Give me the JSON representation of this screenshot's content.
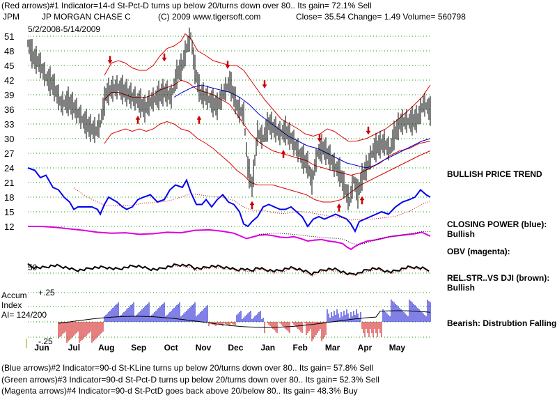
{
  "header": {
    "line1": "(Red arrows)#1 Indicator=14-d St-Pct-D turns up below 20/turns down over 80.. Its gain= 72.1% Sell",
    "symbol": "JPM",
    "company": "JP MORGAN CHASE C",
    "copyright": "(C) 2009 www.tigersoft.com",
    "quote": "Close=  35.54  Change= 1.49 Volume= 560798",
    "date_range": "5/2/2008-5/14/2009"
  },
  "right_labels": {
    "trend": "BULLISH PRICE TREND",
    "closing_power": "CLOSING POWER (blue):",
    "closing_power_val": "Bullish",
    "obv": "OBV (magenta):",
    "relstr": "REL.STR..VS DJI (brown):",
    "relstr_val": "Bullish",
    "accum_status": "Bearish: Distrubtion Falling."
  },
  "left_labels": {
    "accum": "Accum",
    "index": "Index",
    "ai": "AI= 124/200",
    "rel_tick": "50",
    "acc_hi": "+.25",
    "acc_lo": "-.25"
  },
  "footer": {
    "line1": "(Blue arrows)#2 Indicator=90-d St-KLine turns up below 20/turns down over 80.. Its gain= 57.8% Sell",
    "line2": "(Green arrows)#3 Indicator=90-d St-Pct-D turns up below 20/turns down over 80.. Its gain= 52.3% Sell",
    "line3": "(Magenta arrows)#4 Indicator=90-d St-PctD goes back above 20/below 80.. Its gain= 48.3% Buy"
  },
  "colors": {
    "price": "#000000",
    "band": "#dd0000",
    "ma": "#0000cc",
    "closing_power": "#0000ee",
    "obv": "#dd00dd",
    "accum_pos": "#0000cc",
    "accum_neg": "#cc0000",
    "grid": "#009900"
  },
  "chart_data": {
    "type": "line",
    "y_ticks": [
      51,
      48,
      45,
      42,
      39,
      36,
      33,
      30,
      27,
      24,
      21,
      18,
      15,
      12
    ],
    "ylim": [
      12,
      51
    ],
    "months": [
      "Jun",
      "Jul",
      "Aug",
      "Sep",
      "Oct",
      "Nov",
      "Dec",
      "Jan",
      "Feb",
      "Mar",
      "Apr",
      "May"
    ],
    "price_close": [
      [
        0,
        49.5
      ],
      [
        8,
        46.5
      ],
      [
        16,
        45.5
      ],
      [
        26,
        42.5
      ],
      [
        36,
        41
      ],
      [
        48,
        37
      ],
      [
        58,
        37.5
      ],
      [
        68,
        36
      ],
      [
        80,
        33.5
      ],
      [
        90,
        32
      ],
      [
        98,
        31.5
      ],
      [
        104,
        33
      ],
      [
        112,
        39
      ],
      [
        120,
        40
      ],
      [
        130,
        40.5
      ],
      [
        140,
        39.5
      ],
      [
        150,
        38.5
      ],
      [
        160,
        37.5
      ],
      [
        168,
        36
      ],
      [
        176,
        37.5
      ],
      [
        186,
        38.5
      ],
      [
        196,
        39.5
      ],
      [
        206,
        38.5
      ],
      [
        214,
        43
      ],
      [
        222,
        45
      ],
      [
        228,
        48.5
      ],
      [
        234,
        51
      ],
      [
        240,
        44
      ],
      [
        248,
        39
      ],
      [
        256,
        38.5
      ],
      [
        264,
        37.5
      ],
      [
        272,
        36.5
      ],
      [
        280,
        39
      ],
      [
        290,
        41.5
      ],
      [
        296,
        38.5
      ],
      [
        302,
        36
      ],
      [
        310,
        35
      ],
      [
        316,
        24
      ],
      [
        322,
        20
      ],
      [
        330,
        31
      ],
      [
        338,
        30
      ],
      [
        346,
        33
      ],
      [
        354,
        32
      ],
      [
        362,
        31
      ],
      [
        370,
        31.5
      ],
      [
        378,
        30
      ],
      [
        386,
        28
      ],
      [
        394,
        26
      ],
      [
        402,
        24.5
      ],
      [
        408,
        21
      ],
      [
        416,
        27
      ],
      [
        424,
        28
      ],
      [
        432,
        26.5
      ],
      [
        440,
        24.5
      ],
      [
        448,
        23
      ],
      [
        456,
        19.5
      ],
      [
        462,
        17
      ],
      [
        468,
        21.5
      ],
      [
        474,
        18.5
      ],
      [
        480,
        22
      ],
      [
        488,
        24.5
      ],
      [
        496,
        27.5
      ],
      [
        504,
        28.5
      ],
      [
        512,
        29
      ],
      [
        520,
        27.5
      ],
      [
        526,
        30.5
      ],
      [
        534,
        33
      ],
      [
        542,
        33.5
      ],
      [
        552,
        33.5
      ],
      [
        560,
        34
      ],
      [
        568,
        37
      ],
      [
        574,
        36.5
      ],
      [
        578,
        35.5
      ]
    ],
    "band_upper": [
      [
        110,
        43
      ],
      [
        120,
        45.5
      ],
      [
        130,
        46
      ],
      [
        140,
        45.5
      ],
      [
        150,
        44.5
      ],
      [
        160,
        44
      ],
      [
        170,
        44
      ],
      [
        180,
        45
      ],
      [
        190,
        47
      ],
      [
        200,
        48.5
      ],
      [
        210,
        49
      ],
      [
        220,
        50
      ],
      [
        226,
        51.5
      ],
      [
        234,
        50.5
      ],
      [
        244,
        48
      ],
      [
        256,
        47
      ],
      [
        266,
        46
      ],
      [
        278,
        45.5
      ],
      [
        290,
        45
      ],
      [
        300,
        45
      ],
      [
        310,
        44
      ],
      [
        320,
        42
      ],
      [
        330,
        40
      ],
      [
        340,
        38
      ],
      [
        352,
        36
      ],
      [
        364,
        34
      ],
      [
        376,
        33
      ],
      [
        388,
        32
      ],
      [
        398,
        31
      ],
      [
        410,
        30.5
      ],
      [
        420,
        31
      ],
      [
        430,
        32
      ],
      [
        440,
        31.5
      ],
      [
        450,
        30.5
      ],
      [
        460,
        29.5
      ],
      [
        472,
        29.5
      ],
      [
        486,
        30
      ],
      [
        500,
        31
      ],
      [
        514,
        32
      ],
      [
        528,
        33.5
      ],
      [
        540,
        35
      ],
      [
        552,
        36.5
      ],
      [
        566,
        38.5
      ],
      [
        578,
        41
      ]
    ],
    "band_mid": [
      [
        110,
        38
      ],
      [
        120,
        39.5
      ],
      [
        130,
        39.5
      ],
      [
        140,
        39
      ],
      [
        150,
        38.5
      ],
      [
        160,
        38.5
      ],
      [
        170,
        38.5
      ],
      [
        180,
        39
      ],
      [
        190,
        40
      ],
      [
        200,
        40.5
      ],
      [
        210,
        41
      ],
      [
        220,
        42
      ],
      [
        230,
        41.5
      ],
      [
        244,
        40
      ],
      [
        256,
        39.5
      ],
      [
        266,
        39
      ],
      [
        278,
        38
      ],
      [
        290,
        37
      ],
      [
        300,
        35
      ],
      [
        310,
        33
      ],
      [
        320,
        31
      ],
      [
        330,
        29.5
      ],
      [
        340,
        28.5
      ],
      [
        352,
        27.5
      ],
      [
        364,
        27
      ],
      [
        376,
        26.5
      ],
      [
        388,
        26
      ],
      [
        400,
        25.5
      ],
      [
        412,
        24.5
      ],
      [
        424,
        24
      ],
      [
        436,
        23.5
      ],
      [
        450,
        23
      ],
      [
        464,
        22.5
      ],
      [
        478,
        23
      ],
      [
        492,
        24
      ],
      [
        506,
        25
      ],
      [
        520,
        26.5
      ],
      [
        534,
        27.5
      ],
      [
        548,
        28
      ],
      [
        562,
        29
      ],
      [
        578,
        29.5
      ]
    ],
    "band_lower": [
      [
        110,
        29
      ],
      [
        120,
        31
      ],
      [
        130,
        31.5
      ],
      [
        140,
        32
      ],
      [
        150,
        31.5
      ],
      [
        160,
        32
      ],
      [
        170,
        31.5
      ],
      [
        180,
        32
      ],
      [
        190,
        33
      ],
      [
        200,
        33.5
      ],
      [
        210,
        33
      ],
      [
        220,
        32
      ],
      [
        232,
        31.5
      ],
      [
        244,
        30
      ],
      [
        256,
        29
      ],
      [
        266,
        28
      ],
      [
        278,
        26.5
      ],
      [
        290,
        25
      ],
      [
        300,
        23.5
      ],
      [
        310,
        22.5
      ],
      [
        320,
        21
      ],
      [
        330,
        20.5
      ],
      [
        340,
        20.5
      ],
      [
        352,
        20.5
      ],
      [
        364,
        20
      ],
      [
        376,
        19.5
      ],
      [
        388,
        19
      ],
      [
        400,
        18.5
      ],
      [
        412,
        17.5
      ],
      [
        424,
        17
      ],
      [
        436,
        17
      ],
      [
        450,
        17.5
      ],
      [
        464,
        19
      ],
      [
        478,
        20.5
      ],
      [
        492,
        21.5
      ],
      [
        506,
        22.5
      ],
      [
        520,
        23.5
      ],
      [
        534,
        24.5
      ],
      [
        548,
        25.5
      ],
      [
        562,
        26.5
      ],
      [
        578,
        27.5
      ]
    ],
    "ma": [
      [
        210,
        38.5
      ],
      [
        222,
        39.5
      ],
      [
        236,
        40.5
      ],
      [
        250,
        41
      ],
      [
        262,
        40.5
      ],
      [
        276,
        40
      ],
      [
        290,
        39.5
      ],
      [
        304,
        38.5
      ],
      [
        318,
        37
      ],
      [
        332,
        35
      ],
      [
        346,
        33.5
      ],
      [
        360,
        32
      ],
      [
        374,
        30.5
      ],
      [
        388,
        29.5
      ],
      [
        402,
        28.5
      ],
      [
        416,
        28
      ],
      [
        430,
        27
      ],
      [
        444,
        26
      ],
      [
        458,
        25
      ],
      [
        472,
        24.5
      ],
      [
        486,
        24
      ],
      [
        498,
        24.5
      ],
      [
        510,
        25.5
      ],
      [
        524,
        26.5
      ],
      [
        538,
        27.5
      ],
      [
        552,
        28.5
      ],
      [
        566,
        29.5
      ],
      [
        578,
        30
      ]
    ],
    "closing_power": [
      [
        0,
        24
      ],
      [
        10,
        23.5
      ],
      [
        18,
        22
      ],
      [
        26,
        22.5
      ],
      [
        36,
        20
      ],
      [
        44,
        19.5
      ],
      [
        52,
        18
      ],
      [
        60,
        17
      ],
      [
        66,
        15.5
      ],
      [
        72,
        16
      ],
      [
        82,
        16
      ],
      [
        92,
        16
      ],
      [
        100,
        15.5
      ],
      [
        104,
        14.5
      ],
      [
        110,
        16.5
      ],
      [
        116,
        18
      ],
      [
        122,
        17.5
      ],
      [
        128,
        17
      ],
      [
        136,
        16
      ],
      [
        142,
        15.5
      ],
      [
        150,
        16
      ],
      [
        158,
        17.5
      ],
      [
        166,
        18
      ],
      [
        176,
        18.5
      ],
      [
        186,
        17
      ],
      [
        196,
        17.5
      ],
      [
        204,
        19.5
      ],
      [
        212,
        20.5
      ],
      [
        222,
        20
      ],
      [
        228,
        21.5
      ],
      [
        234,
        19
      ],
      [
        242,
        16.5
      ],
      [
        250,
        16.5
      ],
      [
        256,
        17.5
      ],
      [
        264,
        16
      ],
      [
        272,
        17.5
      ],
      [
        280,
        18.5
      ],
      [
        288,
        17
      ],
      [
        296,
        16.5
      ],
      [
        304,
        15
      ],
      [
        310,
        12.5
      ],
      [
        316,
        12
      ],
      [
        322,
        13
      ],
      [
        330,
        14
      ],
      [
        338,
        16
      ],
      [
        346,
        16.5
      ],
      [
        354,
        16
      ],
      [
        362,
        15.5
      ],
      [
        370,
        15.5
      ],
      [
        378,
        16
      ],
      [
        386,
        15
      ],
      [
        394,
        14
      ],
      [
        402,
        12
      ],
      [
        410,
        13.5
      ],
      [
        418,
        14
      ],
      [
        426,
        13.5
      ],
      [
        434,
        14
      ],
      [
        442,
        14.5
      ],
      [
        450,
        14
      ],
      [
        458,
        13.5
      ],
      [
        464,
        12.5
      ],
      [
        470,
        11
      ],
      [
        476,
        13
      ],
      [
        484,
        13.5
      ],
      [
        492,
        14
      ],
      [
        500,
        14.5
      ],
      [
        508,
        15
      ],
      [
        518,
        14.5
      ],
      [
        528,
        16
      ],
      [
        538,
        17
      ],
      [
        548,
        17.5
      ],
      [
        556,
        18
      ],
      [
        564,
        19.5
      ],
      [
        572,
        18.5
      ],
      [
        578,
        18
      ]
    ],
    "obv": [
      [
        0,
        12
      ],
      [
        20,
        12
      ],
      [
        40,
        11.8
      ],
      [
        60,
        11.5
      ],
      [
        80,
        11.2
      ],
      [
        100,
        10.8
      ],
      [
        120,
        10.6
      ],
      [
        140,
        10.7
      ],
      [
        160,
        10.4
      ],
      [
        180,
        10.5
      ],
      [
        200,
        10.8
      ],
      [
        220,
        10.7
      ],
      [
        240,
        11.2
      ],
      [
        260,
        11.3
      ],
      [
        280,
        11
      ],
      [
        296,
        10.6
      ],
      [
        306,
        10
      ],
      [
        314,
        9.5
      ],
      [
        322,
        9.8
      ],
      [
        332,
        10.2
      ],
      [
        342,
        10.3
      ],
      [
        352,
        10.1
      ],
      [
        362,
        9.8
      ],
      [
        372,
        9.7
      ],
      [
        382,
        9.9
      ],
      [
        392,
        9.5
      ],
      [
        402,
        9
      ],
      [
        412,
        9.2
      ],
      [
        422,
        9.3
      ],
      [
        432,
        9.0
      ],
      [
        442,
        8.8
      ],
      [
        452,
        8.5
      ],
      [
        458,
        7.8
      ],
      [
        464,
        7.3
      ],
      [
        470,
        7.9
      ],
      [
        478,
        8.5
      ],
      [
        488,
        9
      ],
      [
        498,
        9.2
      ],
      [
        508,
        9.5
      ],
      [
        520,
        9.9
      ],
      [
        532,
        10.1
      ],
      [
        544,
        10.3
      ],
      [
        556,
        10.5
      ],
      [
        566,
        10.8
      ],
      [
        572,
        10.4
      ],
      [
        578,
        10
      ]
    ],
    "up_arrows_at": [
      [
        158,
        33.5
      ],
      [
        246,
        33.5
      ],
      [
        322,
        16
      ],
      [
        367,
        26.5
      ],
      [
        447,
        15.5
      ],
      [
        480,
        17
      ]
    ],
    "down_arrows_at": [
      [
        118,
        46.5
      ],
      [
        196,
        47
      ],
      [
        287,
        45.5
      ],
      [
        340,
        41.5
      ],
      [
        419,
        30.5
      ],
      [
        489,
        32
      ]
    ],
    "ai": "124/200"
  }
}
